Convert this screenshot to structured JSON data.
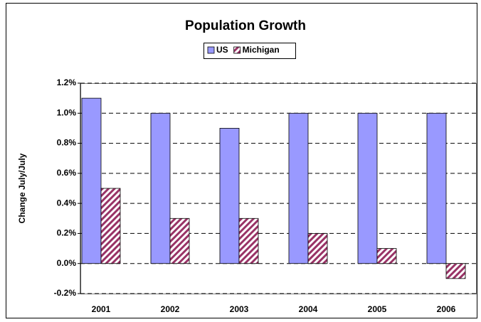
{
  "chart_data": {
    "type": "bar",
    "title": "Population Growth",
    "ylabel": "Change July/July",
    "categories": [
      "2001",
      "2002",
      "2003",
      "2004",
      "2005",
      "2006"
    ],
    "series": [
      {
        "name": "US",
        "color": "#9999ff",
        "values": [
          1.1,
          1.0,
          0.9,
          1.0,
          1.0,
          1.0
        ]
      },
      {
        "name": "Michigan",
        "color": "#993366",
        "pattern": "diagonal-hatch",
        "values": [
          0.5,
          0.3,
          0.3,
          0.2,
          0.1,
          -0.1
        ]
      }
    ],
    "ylim": [
      -0.2,
      1.2
    ],
    "yticks": [
      {
        "value": -0.2,
        "label": "-0.2%"
      },
      {
        "value": 0,
        "label": "0.0%"
      },
      {
        "value": 0.2,
        "label": "0.2%"
      },
      {
        "value": 0.4,
        "label": "0.4%"
      },
      {
        "value": 0.6,
        "label": "0.6%"
      },
      {
        "value": 0.8,
        "label": "0.8%"
      },
      {
        "value": 1.0,
        "label": "1.0%"
      },
      {
        "value": 1.2,
        "label": "1.2%"
      }
    ],
    "grid": true,
    "legend": "top"
  }
}
